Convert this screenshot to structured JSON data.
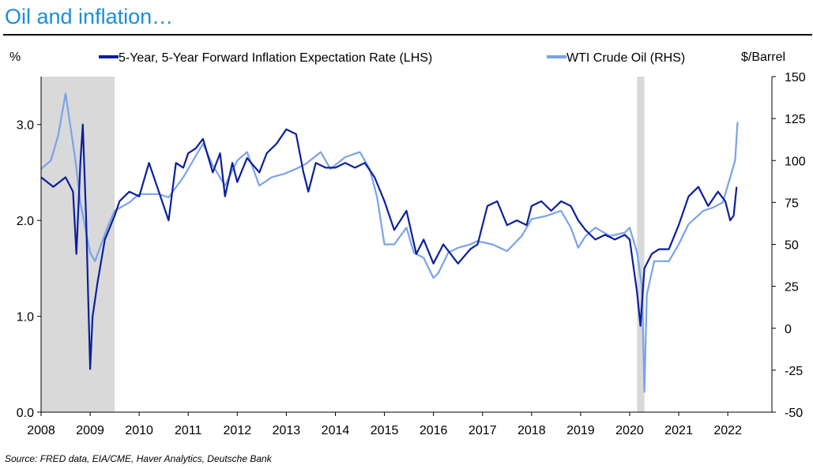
{
  "title": "Oil and inflation…",
  "source": "Source:  FRED data, EIA/CME, Haver Analytics, Deutsche Bank",
  "colors": {
    "title": "#1a8fd6",
    "series1": "#0a1f9c",
    "series2": "#7aa2ea",
    "recession": "#d9d9d9"
  },
  "chart_data": {
    "type": "line",
    "title": "Oil and inflation…",
    "left_axis": {
      "label": "%",
      "ylim": [
        0,
        3.5
      ],
      "ticks": [
        0,
        1,
        2,
        3
      ],
      "tick_labels": [
        "0.0",
        "1.0",
        "2.0",
        "3.0"
      ]
    },
    "right_axis": {
      "label": "$/Barrel",
      "ylim": [
        -50,
        150
      ],
      "ticks": [
        -50,
        -25,
        0,
        25,
        50,
        75,
        100,
        125,
        150
      ],
      "tick_labels": [
        "-50",
        "-25",
        "0",
        "25",
        "50",
        "75",
        "100",
        "125",
        "150"
      ]
    },
    "xlim": [
      2008,
      2022.9
    ],
    "x_ticks": [
      2008,
      2009,
      2010,
      2011,
      2012,
      2013,
      2014,
      2015,
      2016,
      2017,
      2018,
      2019,
      2020,
      2021,
      2022
    ],
    "x_tick_labels": [
      "2008",
      "2009",
      "2010",
      "2011",
      "2012",
      "2013",
      "2014",
      "2015",
      "2016",
      "2017",
      "2018",
      "2019",
      "2020",
      "2021",
      "2022"
    ],
    "shaded_periods": [
      [
        2008.0,
        2009.5
      ],
      [
        2020.15,
        2020.3
      ]
    ],
    "series": [
      {
        "name": "5-Year, 5-Year Forward Inflation Expectation Rate (LHS)",
        "axis": "left",
        "x": [
          2008.0,
          2008.25,
          2008.5,
          2008.65,
          2008.72,
          2008.8,
          2008.85,
          2008.92,
          2008.96,
          2009.0,
          2009.05,
          2009.15,
          2009.3,
          2009.5,
          2009.6,
          2009.8,
          2010.0,
          2010.2,
          2010.4,
          2010.6,
          2010.75,
          2010.9,
          2011.0,
          2011.15,
          2011.3,
          2011.5,
          2011.65,
          2011.75,
          2011.9,
          2012.0,
          2012.2,
          2012.45,
          2012.6,
          2012.8,
          2013.0,
          2013.2,
          2013.35,
          2013.45,
          2013.6,
          2013.8,
          2014.0,
          2014.2,
          2014.4,
          2014.6,
          2014.8,
          2015.0,
          2015.2,
          2015.45,
          2015.65,
          2015.8,
          2016.0,
          2016.2,
          2016.5,
          2016.75,
          2016.9,
          2017.1,
          2017.3,
          2017.5,
          2017.7,
          2017.9,
          2018.0,
          2018.2,
          2018.4,
          2018.6,
          2018.8,
          2018.95,
          2019.1,
          2019.3,
          2019.5,
          2019.7,
          2019.9,
          2020.0,
          2020.15,
          2020.22,
          2020.3,
          2020.45,
          2020.6,
          2020.8,
          2021.0,
          2021.2,
          2021.4,
          2021.6,
          2021.8,
          2021.95,
          2022.05,
          2022.12,
          2022.18
        ],
        "values": [
          2.45,
          2.35,
          2.45,
          2.3,
          1.65,
          2.6,
          3.0,
          2.0,
          1.2,
          0.45,
          1.0,
          1.35,
          1.8,
          2.05,
          2.2,
          2.3,
          2.25,
          2.6,
          2.3,
          2.0,
          2.6,
          2.55,
          2.7,
          2.75,
          2.85,
          2.5,
          2.7,
          2.25,
          2.6,
          2.4,
          2.65,
          2.5,
          2.7,
          2.8,
          2.95,
          2.9,
          2.5,
          2.3,
          2.6,
          2.55,
          2.55,
          2.6,
          2.55,
          2.6,
          2.45,
          2.2,
          1.9,
          2.1,
          1.65,
          1.8,
          1.55,
          1.75,
          1.55,
          1.7,
          1.75,
          2.15,
          2.2,
          1.95,
          2.0,
          1.95,
          2.15,
          2.2,
          2.1,
          2.2,
          2.15,
          2.0,
          1.9,
          1.8,
          1.85,
          1.8,
          1.85,
          1.8,
          1.25,
          0.9,
          1.5,
          1.65,
          1.7,
          1.7,
          1.95,
          2.25,
          2.35,
          2.15,
          2.3,
          2.2,
          2.0,
          2.05,
          2.35
        ]
      },
      {
        "name": "WTI Crude Oil (RHS)",
        "axis": "right",
        "x": [
          2008.0,
          2008.2,
          2008.35,
          2008.5,
          2008.6,
          2008.7,
          2008.8,
          2008.9,
          2009.0,
          2009.1,
          2009.2,
          2009.35,
          2009.5,
          2009.8,
          2010.0,
          2010.4,
          2010.6,
          2010.9,
          2011.1,
          2011.3,
          2011.5,
          2011.75,
          2012.0,
          2012.2,
          2012.45,
          2012.7,
          2012.95,
          2013.2,
          2013.4,
          2013.7,
          2013.9,
          2014.2,
          2014.5,
          2014.7,
          2014.85,
          2015.0,
          2015.2,
          2015.45,
          2015.6,
          2015.8,
          2016.0,
          2016.1,
          2016.3,
          2016.5,
          2016.75,
          2016.9,
          2017.2,
          2017.5,
          2017.8,
          2018.0,
          2018.3,
          2018.6,
          2018.8,
          2018.95,
          2019.1,
          2019.3,
          2019.6,
          2019.9,
          2020.0,
          2020.15,
          2020.25,
          2020.3,
          2020.35,
          2020.5,
          2020.8,
          2021.0,
          2021.2,
          2021.5,
          2021.7,
          2021.9,
          2022.0,
          2022.1,
          2022.15,
          2022.2
        ],
        "values": [
          95,
          100,
          115,
          140,
          120,
          100,
          75,
          60,
          45,
          40,
          48,
          60,
          70,
          75,
          80,
          80,
          78,
          90,
          100,
          110,
          97,
          85,
          100,
          105,
          85,
          90,
          92,
          95,
          98,
          105,
          95,
          102,
          105,
          95,
          78,
          50,
          50,
          60,
          45,
          42,
          30,
          33,
          45,
          48,
          50,
          52,
          50,
          46,
          55,
          65,
          67,
          70,
          60,
          48,
          55,
          60,
          55,
          57,
          60,
          45,
          25,
          -38,
          20,
          40,
          40,
          50,
          62,
          70,
          72,
          75,
          85,
          95,
          100,
          123
        ]
      }
    ]
  },
  "legend": {
    "left_unit": "%",
    "series1_label": "5-Year, 5-Year Forward Inflation Expectation Rate (LHS)",
    "series2_label": "WTI Crude Oil (RHS)",
    "right_unit": "$/Barrel"
  }
}
